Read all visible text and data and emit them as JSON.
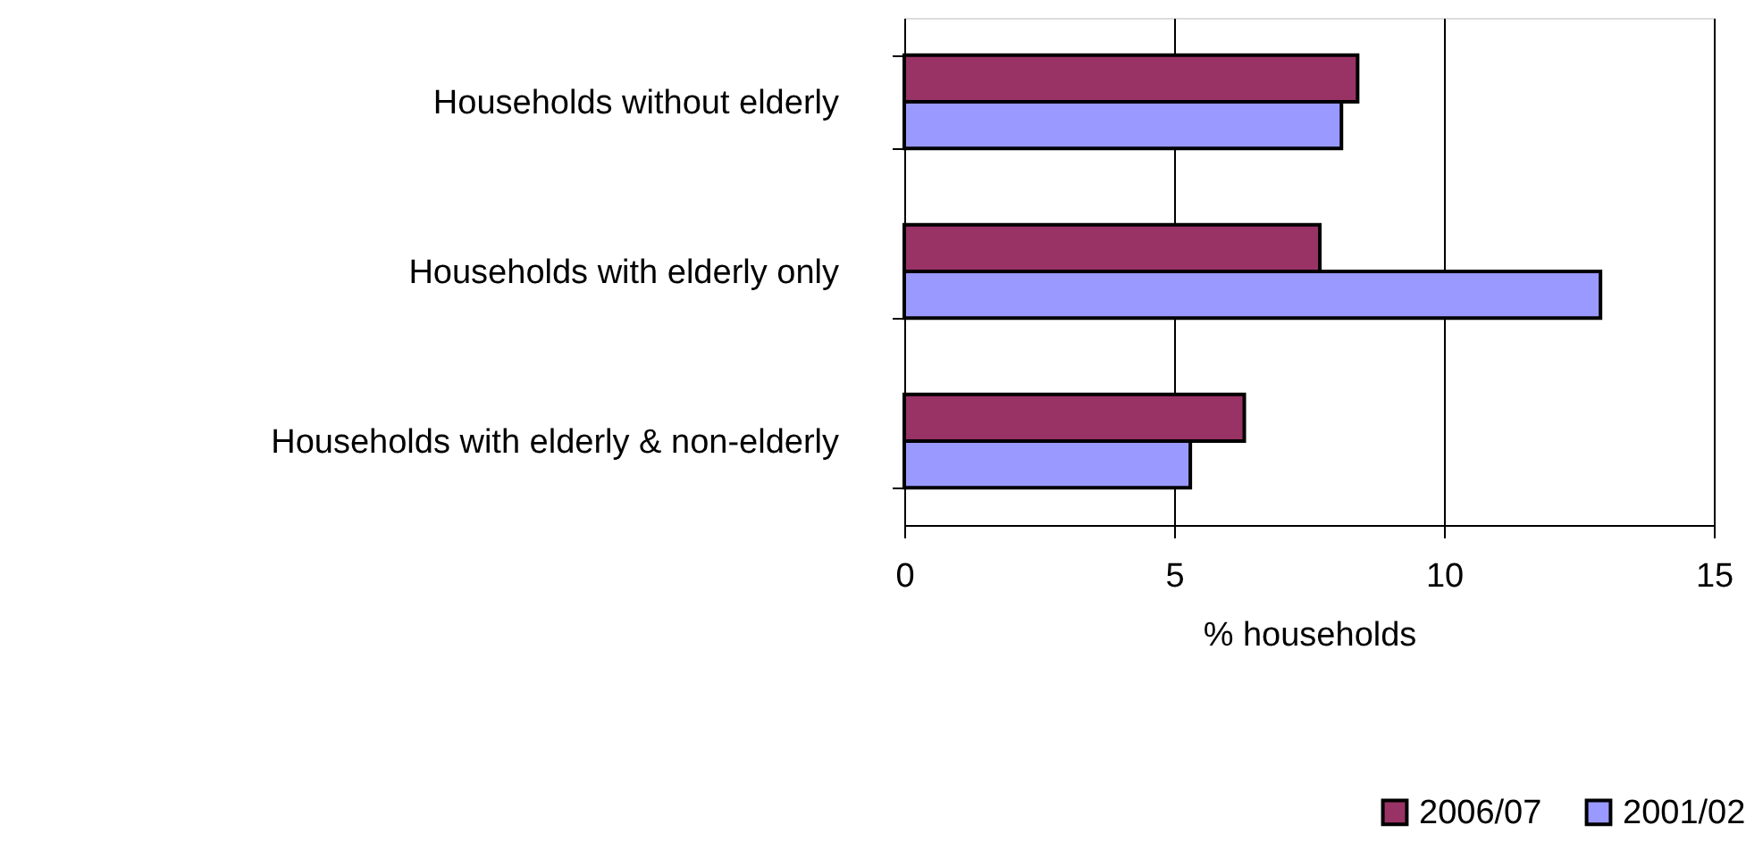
{
  "chart_data": {
    "type": "bar",
    "orientation": "horizontal",
    "categories": [
      "Households without elderly",
      "Households with elderly only",
      "Households with elderly & non-elderly"
    ],
    "series": [
      {
        "name": "2006/07",
        "color": "#993366",
        "values": [
          8.4,
          7.7,
          6.3
        ]
      },
      {
        "name": "2001/02",
        "color": "#9999ff",
        "values": [
          8.1,
          12.9,
          5.3
        ]
      }
    ],
    "xlabel": "% households",
    "xlim": [
      0,
      15
    ],
    "xticks": [
      0,
      5,
      10,
      15
    ],
    "grid": "x",
    "legend": "bottom"
  }
}
